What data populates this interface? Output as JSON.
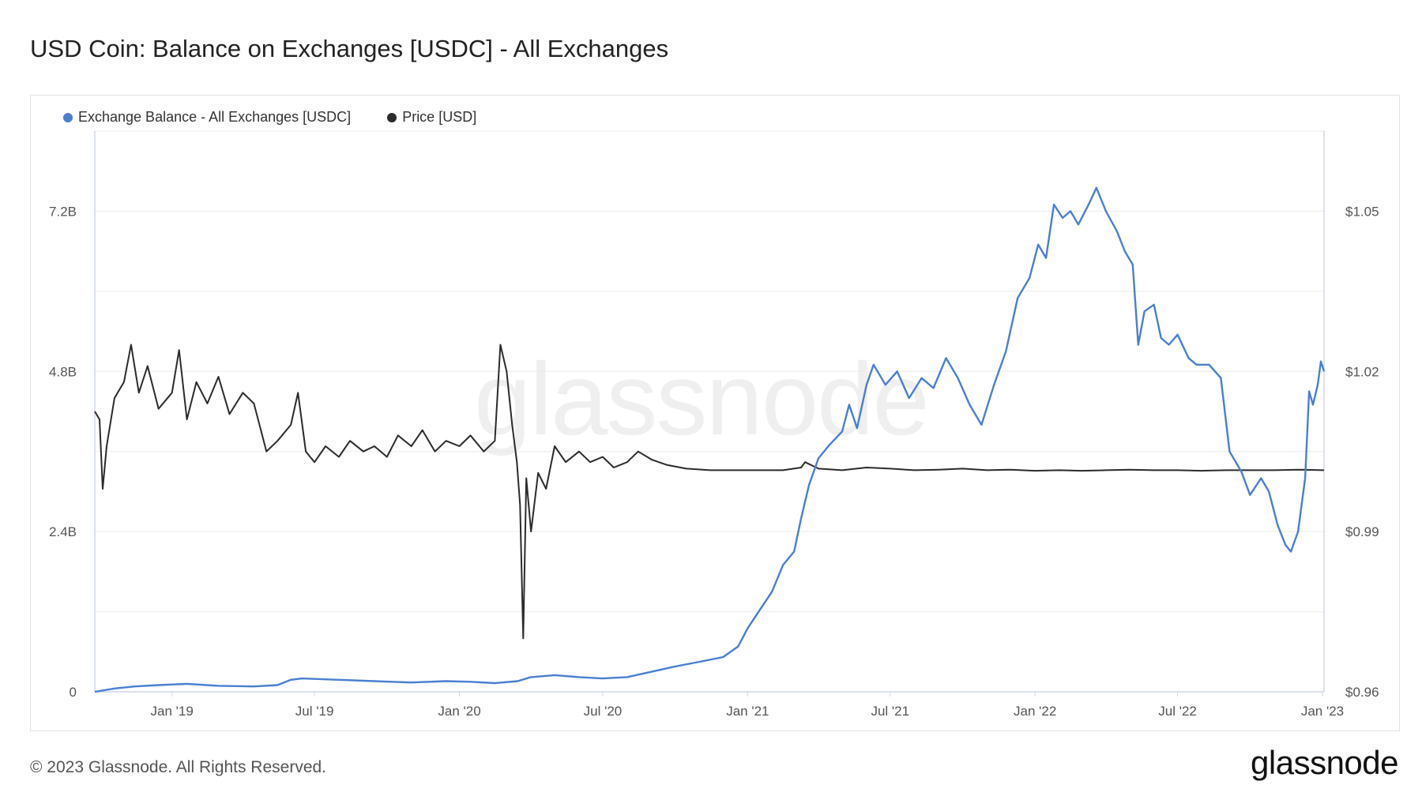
{
  "page": {
    "title": "USD Coin: Balance on Exchanges [USDC] - All Exchanges",
    "footer_copyright": "© 2023 Glassnode. All Rights Reserved.",
    "footer_logo": "glassnode",
    "watermark": "glassnode"
  },
  "chart_data": {
    "type": "line",
    "title": "USD Coin: Balance on Exchanges [USDC] - All Exchanges",
    "legend_placement": "top-left",
    "grid": true,
    "x_range": [
      "2018-09-25",
      "2023-01-03"
    ],
    "x_ticks": [
      "Jan '19",
      "Jul '19",
      "Jan '20",
      "Jul '20",
      "Jan '21",
      "Jul '21",
      "Jan '22",
      "Jul '22",
      "Jan '23"
    ],
    "x_tick_dates": [
      "2019-01-01",
      "2019-07-01",
      "2020-01-01",
      "2020-07-01",
      "2021-01-01",
      "2021-07-01",
      "2022-01-01",
      "2022-07-01",
      "2023-01-01"
    ],
    "y_left": {
      "ticks": [
        "0",
        "2.4B",
        "4.8B",
        "7.2B"
      ],
      "tick_values": [
        0,
        2.4,
        4.8,
        7.2
      ],
      "range": [
        0,
        8.4
      ],
      "unit": "B USDC"
    },
    "y_right": {
      "ticks": [
        "$0.96",
        "$0.99",
        "$1.02",
        "$1.05"
      ],
      "tick_values": [
        0.96,
        0.99,
        1.02,
        1.05
      ],
      "range": [
        0.96,
        1.065
      ]
    },
    "series": [
      {
        "name": "Exchange Balance - All Exchanges [USDC]",
        "axis": "left",
        "color": "#4a7fd1",
        "points": [
          [
            "2018-09-25",
            0.0
          ],
          [
            "2018-10-20",
            0.05
          ],
          [
            "2018-11-15",
            0.08
          ],
          [
            "2018-12-15",
            0.1
          ],
          [
            "2019-01-20",
            0.12
          ],
          [
            "2019-03-01",
            0.09
          ],
          [
            "2019-04-15",
            0.08
          ],
          [
            "2019-05-15",
            0.1
          ],
          [
            "2019-06-01",
            0.18
          ],
          [
            "2019-06-15",
            0.2
          ],
          [
            "2019-08-01",
            0.18
          ],
          [
            "2019-09-15",
            0.16
          ],
          [
            "2019-11-01",
            0.14
          ],
          [
            "2019-12-15",
            0.16
          ],
          [
            "2020-01-15",
            0.15
          ],
          [
            "2020-02-15",
            0.13
          ],
          [
            "2020-03-15",
            0.16
          ],
          [
            "2020-04-01",
            0.22
          ],
          [
            "2020-05-01",
            0.25
          ],
          [
            "2020-06-01",
            0.22
          ],
          [
            "2020-07-01",
            0.2
          ],
          [
            "2020-08-01",
            0.22
          ],
          [
            "2020-09-01",
            0.3
          ],
          [
            "2020-10-01",
            0.38
          ],
          [
            "2020-11-01",
            0.45
          ],
          [
            "2020-12-01",
            0.52
          ],
          [
            "2020-12-20",
            0.68
          ],
          [
            "2021-01-01",
            0.95
          ],
          [
            "2021-01-15",
            1.2
          ],
          [
            "2021-02-01",
            1.5
          ],
          [
            "2021-02-15",
            1.9
          ],
          [
            "2021-03-01",
            2.1
          ],
          [
            "2021-03-10",
            2.6
          ],
          [
            "2021-03-20",
            3.1
          ],
          [
            "2021-04-01",
            3.5
          ],
          [
            "2021-04-15",
            3.7
          ],
          [
            "2021-05-01",
            3.9
          ],
          [
            "2021-05-10",
            4.3
          ],
          [
            "2021-05-20",
            3.95
          ],
          [
            "2021-06-01",
            4.6
          ],
          [
            "2021-06-10",
            4.9
          ],
          [
            "2021-06-25",
            4.6
          ],
          [
            "2021-07-10",
            4.8
          ],
          [
            "2021-07-25",
            4.4
          ],
          [
            "2021-08-10",
            4.7
          ],
          [
            "2021-08-25",
            4.55
          ],
          [
            "2021-09-10",
            5.0
          ],
          [
            "2021-09-25",
            4.7
          ],
          [
            "2021-10-10",
            4.3
          ],
          [
            "2021-10-25",
            4.0
          ],
          [
            "2021-11-10",
            4.6
          ],
          [
            "2021-11-25",
            5.1
          ],
          [
            "2021-12-10",
            5.9
          ],
          [
            "2021-12-25",
            6.2
          ],
          [
            "2022-01-05",
            6.7
          ],
          [
            "2022-01-15",
            6.5
          ],
          [
            "2022-01-25",
            7.3
          ],
          [
            "2022-02-05",
            7.1
          ],
          [
            "2022-02-15",
            7.2
          ],
          [
            "2022-02-25",
            7.0
          ],
          [
            "2022-03-10",
            7.3
          ],
          [
            "2022-03-20",
            7.55
          ],
          [
            "2022-04-01",
            7.2
          ],
          [
            "2022-04-15",
            6.9
          ],
          [
            "2022-04-25",
            6.6
          ],
          [
            "2022-05-05",
            6.4
          ],
          [
            "2022-05-12",
            5.2
          ],
          [
            "2022-05-20",
            5.7
          ],
          [
            "2022-06-01",
            5.8
          ],
          [
            "2022-06-10",
            5.3
          ],
          [
            "2022-06-20",
            5.2
          ],
          [
            "2022-07-01",
            5.35
          ],
          [
            "2022-07-15",
            5.0
          ],
          [
            "2022-07-25",
            4.9
          ],
          [
            "2022-08-10",
            4.9
          ],
          [
            "2022-08-25",
            4.7
          ],
          [
            "2022-09-05",
            3.6
          ],
          [
            "2022-09-20",
            3.3
          ],
          [
            "2022-10-01",
            2.95
          ],
          [
            "2022-10-15",
            3.2
          ],
          [
            "2022-10-25",
            3.0
          ],
          [
            "2022-11-05",
            2.5
          ],
          [
            "2022-11-15",
            2.2
          ],
          [
            "2022-11-22",
            2.1
          ],
          [
            "2022-12-01",
            2.4
          ],
          [
            "2022-12-10",
            3.2
          ],
          [
            "2022-12-15",
            4.5
          ],
          [
            "2022-12-20",
            4.3
          ],
          [
            "2022-12-26",
            4.6
          ],
          [
            "2022-12-30",
            4.95
          ],
          [
            "2023-01-03",
            4.8
          ]
        ]
      },
      {
        "name": "Price [USD]",
        "axis": "right",
        "color": "#2b2b2b",
        "points": [
          [
            "2018-09-25",
            1.0125
          ],
          [
            "2018-10-01",
            1.011
          ],
          [
            "2018-10-05",
            0.998
          ],
          [
            "2018-10-10",
            1.006
          ],
          [
            "2018-10-20",
            1.015
          ],
          [
            "2018-11-01",
            1.018
          ],
          [
            "2018-11-10",
            1.025
          ],
          [
            "2018-11-20",
            1.016
          ],
          [
            "2018-12-01",
            1.021
          ],
          [
            "2018-12-15",
            1.013
          ],
          [
            "2019-01-01",
            1.016
          ],
          [
            "2019-01-10",
            1.024
          ],
          [
            "2019-01-20",
            1.011
          ],
          [
            "2019-02-01",
            1.018
          ],
          [
            "2019-02-15",
            1.014
          ],
          [
            "2019-03-01",
            1.019
          ],
          [
            "2019-03-15",
            1.012
          ],
          [
            "2019-04-01",
            1.016
          ],
          [
            "2019-04-15",
            1.014
          ],
          [
            "2019-05-01",
            1.005
          ],
          [
            "2019-05-15",
            1.007
          ],
          [
            "2019-06-01",
            1.01
          ],
          [
            "2019-06-10",
            1.016
          ],
          [
            "2019-06-20",
            1.005
          ],
          [
            "2019-07-01",
            1.003
          ],
          [
            "2019-07-15",
            1.006
          ],
          [
            "2019-08-01",
            1.004
          ],
          [
            "2019-08-15",
            1.007
          ],
          [
            "2019-09-01",
            1.005
          ],
          [
            "2019-09-15",
            1.006
          ],
          [
            "2019-10-01",
            1.004
          ],
          [
            "2019-10-15",
            1.008
          ],
          [
            "2019-11-01",
            1.006
          ],
          [
            "2019-11-15",
            1.009
          ],
          [
            "2019-12-01",
            1.005
          ],
          [
            "2019-12-15",
            1.007
          ],
          [
            "2020-01-01",
            1.006
          ],
          [
            "2020-01-15",
            1.008
          ],
          [
            "2020-02-01",
            1.005
          ],
          [
            "2020-02-15",
            1.007
          ],
          [
            "2020-02-22",
            1.025
          ],
          [
            "2020-03-01",
            1.02
          ],
          [
            "2020-03-08",
            1.01
          ],
          [
            "2020-03-14",
            1.003
          ],
          [
            "2020-03-18",
            0.995
          ],
          [
            "2020-03-22",
            0.97
          ],
          [
            "2020-03-26",
            1.0
          ],
          [
            "2020-04-01",
            0.99
          ],
          [
            "2020-04-10",
            1.001
          ],
          [
            "2020-04-20",
            0.998
          ],
          [
            "2020-05-01",
            1.006
          ],
          [
            "2020-05-15",
            1.003
          ],
          [
            "2020-06-01",
            1.005
          ],
          [
            "2020-06-15",
            1.003
          ],
          [
            "2020-07-01",
            1.004
          ],
          [
            "2020-07-15",
            1.002
          ],
          [
            "2020-08-01",
            1.003
          ],
          [
            "2020-08-15",
            1.005
          ],
          [
            "2020-09-01",
            1.0035
          ],
          [
            "2020-09-20",
            1.0025
          ],
          [
            "2020-10-15",
            1.0018
          ],
          [
            "2020-11-15",
            1.0015
          ],
          [
            "2020-12-15",
            1.0015
          ],
          [
            "2021-01-15",
            1.0015
          ],
          [
            "2021-02-15",
            1.0015
          ],
          [
            "2021-03-10",
            1.002
          ],
          [
            "2021-03-15",
            1.003
          ],
          [
            "2021-04-01",
            1.0018
          ],
          [
            "2021-05-01",
            1.0015
          ],
          [
            "2021-06-01",
            1.002
          ],
          [
            "2021-07-01",
            1.0018
          ],
          [
            "2021-08-01",
            1.0015
          ],
          [
            "2021-09-01",
            1.0016
          ],
          [
            "2021-10-01",
            1.0018
          ],
          [
            "2021-11-01",
            1.0015
          ],
          [
            "2021-12-01",
            1.0016
          ],
          [
            "2022-01-01",
            1.0014
          ],
          [
            "2022-02-01",
            1.0015
          ],
          [
            "2022-03-01",
            1.0014
          ],
          [
            "2022-04-01",
            1.0015
          ],
          [
            "2022-05-01",
            1.0016
          ],
          [
            "2022-06-01",
            1.0015
          ],
          [
            "2022-07-01",
            1.0015
          ],
          [
            "2022-08-01",
            1.0014
          ],
          [
            "2022-09-01",
            1.0015
          ],
          [
            "2022-10-01",
            1.0015
          ],
          [
            "2022-11-01",
            1.0015
          ],
          [
            "2022-12-01",
            1.0016
          ],
          [
            "2023-01-03",
            1.0015
          ]
        ]
      }
    ]
  }
}
